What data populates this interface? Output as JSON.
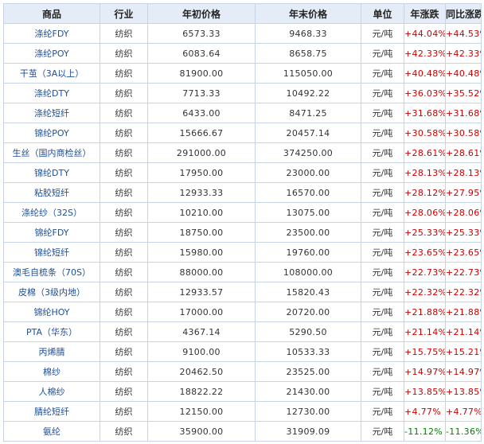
{
  "table": {
    "headers": [
      "商品",
      "行业",
      "年初价格",
      "年末价格",
      "单位",
      "年涨跌",
      "同比涨跌"
    ],
    "rows": [
      {
        "name": "涤纶FDY",
        "industry": "纺织",
        "start_price": "6573.33",
        "end_price": "9468.33",
        "unit": "元/吨",
        "year_change": "+44.04%",
        "yoy_change": "+44.53%"
      },
      {
        "name": "涤纶POY",
        "industry": "纺织",
        "start_price": "6083.64",
        "end_price": "8658.75",
        "unit": "元/吨",
        "year_change": "+42.33%",
        "yoy_change": "+42.33%"
      },
      {
        "name": "干茧（3A以上）",
        "industry": "纺织",
        "start_price": "81900.00",
        "end_price": "115050.00",
        "unit": "元/吨",
        "year_change": "+40.48%",
        "yoy_change": "+40.48%"
      },
      {
        "name": "涤纶DTY",
        "industry": "纺织",
        "start_price": "7713.33",
        "end_price": "10492.22",
        "unit": "元/吨",
        "year_change": "+36.03%",
        "yoy_change": "+35.52%"
      },
      {
        "name": "涤纶短纤",
        "industry": "纺织",
        "start_price": "6433.00",
        "end_price": "8471.25",
        "unit": "元/吨",
        "year_change": "+31.68%",
        "yoy_change": "+31.68%"
      },
      {
        "name": "锦纶POY",
        "industry": "纺织",
        "start_price": "15666.67",
        "end_price": "20457.14",
        "unit": "元/吨",
        "year_change": "+30.58%",
        "yoy_change": "+30.58%"
      },
      {
        "name": "生丝（国内商检丝）",
        "industry": "纺织",
        "start_price": "291000.00",
        "end_price": "374250.00",
        "unit": "元/吨",
        "year_change": "+28.61%",
        "yoy_change": "+28.61%"
      },
      {
        "name": "锦纶DTY",
        "industry": "纺织",
        "start_price": "17950.00",
        "end_price": "23000.00",
        "unit": "元/吨",
        "year_change": "+28.13%",
        "yoy_change": "+28.13%"
      },
      {
        "name": "粘胶短纤",
        "industry": "纺织",
        "start_price": "12933.33",
        "end_price": "16570.00",
        "unit": "元/吨",
        "year_change": "+28.12%",
        "yoy_change": "+27.95%"
      },
      {
        "name": "涤纶纱（32S）",
        "industry": "纺织",
        "start_price": "10210.00",
        "end_price": "13075.00",
        "unit": "元/吨",
        "year_change": "+28.06%",
        "yoy_change": "+28.06%"
      },
      {
        "name": "锦纶FDY",
        "industry": "纺织",
        "start_price": "18750.00",
        "end_price": "23500.00",
        "unit": "元/吨",
        "year_change": "+25.33%",
        "yoy_change": "+25.33%"
      },
      {
        "name": "锦纶短纤",
        "industry": "纺织",
        "start_price": "15980.00",
        "end_price": "19760.00",
        "unit": "元/吨",
        "year_change": "+23.65%",
        "yoy_change": "+23.65%"
      },
      {
        "name": "澳毛自梳条（70S）",
        "industry": "纺织",
        "start_price": "88000.00",
        "end_price": "108000.00",
        "unit": "元/吨",
        "year_change": "+22.73%",
        "yoy_change": "+22.73%"
      },
      {
        "name": "皮棉（3级内地）",
        "industry": "纺织",
        "start_price": "12933.57",
        "end_price": "15820.43",
        "unit": "元/吨",
        "year_change": "+22.32%",
        "yoy_change": "+22.32%"
      },
      {
        "name": "锦纶HOY",
        "industry": "纺织",
        "start_price": "17000.00",
        "end_price": "20720.00",
        "unit": "元/吨",
        "year_change": "+21.88%",
        "yoy_change": "+21.88%"
      },
      {
        "name": "PTA（华东）",
        "industry": "纺织",
        "start_price": "4367.14",
        "end_price": "5290.50",
        "unit": "元/吨",
        "year_change": "+21.14%",
        "yoy_change": "+21.14%"
      },
      {
        "name": "丙烯腈",
        "industry": "纺织",
        "start_price": "9100.00",
        "end_price": "10533.33",
        "unit": "元/吨",
        "year_change": "+15.75%",
        "yoy_change": "+15.21%"
      },
      {
        "name": "棉纱",
        "industry": "纺织",
        "start_price": "20462.50",
        "end_price": "23525.00",
        "unit": "元/吨",
        "year_change": "+14.97%",
        "yoy_change": "+14.97%"
      },
      {
        "name": "人棉纱",
        "industry": "纺织",
        "start_price": "18822.22",
        "end_price": "21430.00",
        "unit": "元/吨",
        "year_change": "+13.85%",
        "yoy_change": "+13.85%"
      },
      {
        "name": "腈纶短纤",
        "industry": "纺织",
        "start_price": "12150.00",
        "end_price": "12730.00",
        "unit": "元/吨",
        "year_change": "+4.77%",
        "yoy_change": "+4.77%"
      },
      {
        "name": "氨纶",
        "industry": "纺织",
        "start_price": "35900.00",
        "end_price": "31909.09",
        "unit": "元/吨",
        "year_change": "-11.12%",
        "yoy_change": "-11.36%"
      }
    ]
  },
  "colors": {
    "header_bg": "#e4edf7",
    "border": "#c6d4e5",
    "name_text": "#1f4e96",
    "up": "#cc0000",
    "down": "#008000"
  }
}
